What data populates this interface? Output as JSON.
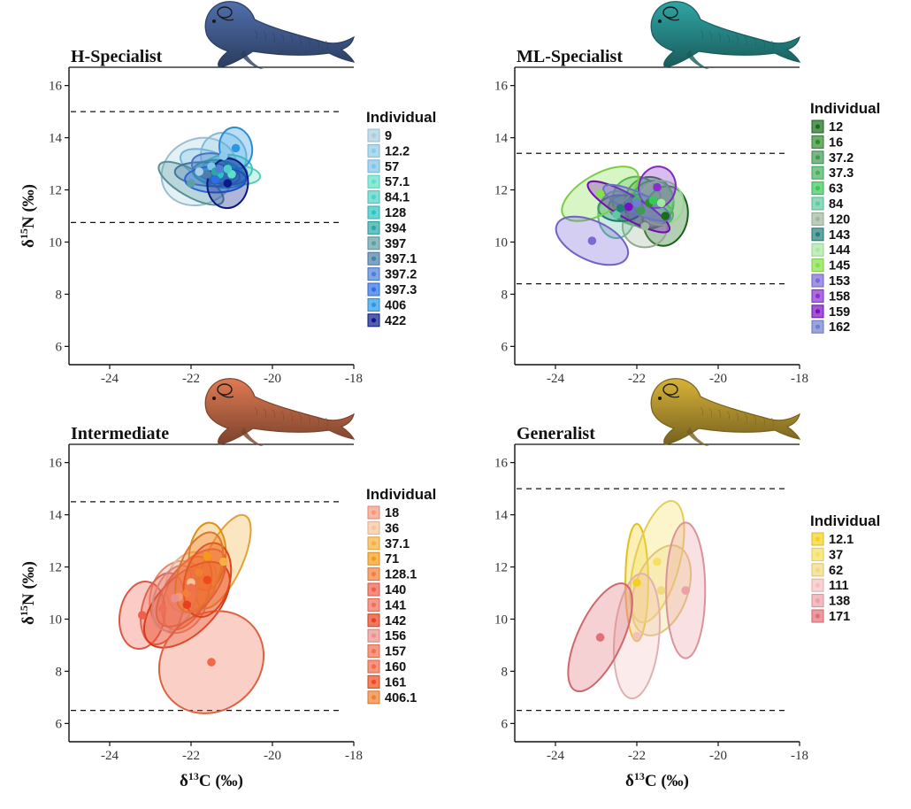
{
  "chart_data": [
    {
      "type": "scatter",
      "title": "H-Specialist",
      "ylabel": "δ15N (‰)",
      "xlabel": "",
      "xlim": [
        -25,
        -18
      ],
      "ylim": [
        5.3,
        16.7
      ],
      "x_ticks": [
        -24,
        -22,
        -20,
        -18
      ],
      "y_ticks": [
        6,
        8,
        10,
        12,
        14,
        16
      ],
      "reference_lines_y": [
        15.0,
        10.75
      ],
      "seal_color": "#4f6fad",
      "legend": {
        "title": "Individual",
        "placement": "right"
      },
      "series": [
        {
          "name": "9",
          "color": "#a8cfe0",
          "centroid": [
            -21.8,
            12.7
          ],
          "ellipse": {
            "rx": 0.95,
            "ry": 1.25,
            "angle": -25
          }
        },
        {
          "name": "12.2",
          "color": "#8ecbea",
          "centroid": [
            -21.2,
            13.3
          ],
          "ellipse": {
            "rx": 0.55,
            "ry": 0.9,
            "angle": -35
          }
        },
        {
          "name": "57",
          "color": "#7fc4ea",
          "centroid": [
            -21.5,
            12.9
          ],
          "ellipse": {
            "rx": 0.8,
            "ry": 0.55,
            "angle": 20
          }
        },
        {
          "name": "57.1",
          "color": "#5fe0c8",
          "centroid": [
            -21.0,
            12.6
          ],
          "ellipse": {
            "rx": 0.7,
            "ry": 0.4,
            "angle": 5
          }
        },
        {
          "name": "84.1",
          "color": "#4fd2c6",
          "centroid": [
            -21.1,
            12.8
          ],
          "ellipse": {
            "rx": 0.6,
            "ry": 0.55,
            "angle": 0
          }
        },
        {
          "name": "128",
          "color": "#2ec2c2",
          "centroid": [
            -21.3,
            12.6
          ],
          "ellipse": {
            "rx": 0.65,
            "ry": 0.5,
            "angle": 10
          }
        },
        {
          "name": "394",
          "color": "#2aa8a8",
          "centroid": [
            -21.4,
            12.7
          ],
          "ellipse": {
            "rx": 0.55,
            "ry": 0.45,
            "angle": 0
          }
        },
        {
          "name": "397",
          "color": "#5f9ea5",
          "centroid": [
            -22.0,
            12.25
          ],
          "ellipse": {
            "rx": 0.9,
            "ry": 0.5,
            "angle": 30
          }
        },
        {
          "name": "397.1",
          "color": "#4a7faa",
          "centroid": [
            -21.6,
            12.6
          ],
          "ellipse": {
            "rx": 0.8,
            "ry": 0.45,
            "angle": 5
          }
        },
        {
          "name": "397.2",
          "color": "#4f7fd5",
          "centroid": [
            -21.3,
            12.8
          ],
          "ellipse": {
            "rx": 0.7,
            "ry": 0.55,
            "angle": 15
          }
        },
        {
          "name": "397.3",
          "color": "#2f6fe6",
          "centroid": [
            -21.4,
            12.4
          ],
          "ellipse": {
            "rx": 0.75,
            "ry": 0.5,
            "angle": 0
          }
        },
        {
          "name": "406",
          "color": "#2b98e6",
          "centroid": [
            -20.9,
            13.6
          ],
          "ellipse": {
            "rx": 0.4,
            "ry": 0.8,
            "angle": -10
          }
        },
        {
          "name": "422",
          "color": "#0a1a8c",
          "centroid": [
            -21.1,
            12.25
          ],
          "ellipse": {
            "rx": 0.5,
            "ry": 0.95,
            "angle": 5
          }
        }
      ]
    },
    {
      "type": "scatter",
      "title": "ML-Specialist",
      "ylabel": "",
      "xlabel": "",
      "xlim": [
        -25,
        -18
      ],
      "ylim": [
        5.3,
        16.7
      ],
      "x_ticks": [
        -24,
        -22,
        -20,
        -18
      ],
      "y_ticks": [
        6,
        8,
        10,
        12,
        14,
        16
      ],
      "reference_lines_y": [
        13.4,
        8.4
      ],
      "seal_color": "#2fa5a5",
      "legend": {
        "title": "Individual",
        "placement": "right"
      },
      "series": [
        {
          "name": "12",
          "color": "#1a6b1a",
          "centroid": [
            -21.3,
            11.0
          ],
          "ellipse": {
            "rx": 0.55,
            "ry": 1.15,
            "angle": 10
          }
        },
        {
          "name": "16",
          "color": "#2e8b2e",
          "centroid": [
            -21.7,
            11.5
          ],
          "ellipse": {
            "rx": 0.6,
            "ry": 1.0,
            "angle": 15
          }
        },
        {
          "name": "37.2",
          "color": "#3f9a54",
          "centroid": [
            -21.9,
            11.2
          ],
          "ellipse": {
            "rx": 0.8,
            "ry": 0.6,
            "angle": 10
          }
        },
        {
          "name": "37.3",
          "color": "#45b060",
          "centroid": [
            -22.0,
            11.6
          ],
          "ellipse": {
            "rx": 0.6,
            "ry": 0.9,
            "angle": 20
          }
        },
        {
          "name": "63",
          "color": "#3bc65a",
          "centroid": [
            -21.6,
            11.6
          ],
          "ellipse": {
            "rx": 0.5,
            "ry": 0.75,
            "angle": 0
          }
        },
        {
          "name": "84",
          "color": "#5fc9a0",
          "centroid": [
            -22.5,
            11.05
          ],
          "ellipse": {
            "rx": 0.45,
            "ry": 0.9,
            "angle": 0
          }
        },
        {
          "name": "120",
          "color": "#9fb89f",
          "centroid": [
            -21.8,
            10.6
          ],
          "ellipse": {
            "rx": 0.55,
            "ry": 0.8,
            "angle": 0
          }
        },
        {
          "name": "143",
          "color": "#1f7f7a",
          "centroid": [
            -22.4,
            11.3
          ],
          "ellipse": {
            "rx": 0.55,
            "ry": 0.5,
            "angle": 0
          }
        },
        {
          "name": "144",
          "color": "#a6e8a0",
          "centroid": [
            -21.4,
            11.5
          ],
          "ellipse": {
            "rx": 0.55,
            "ry": 0.85,
            "angle": 15
          }
        },
        {
          "name": "145",
          "color": "#86e04a",
          "centroid": [
            -22.9,
            11.85
          ],
          "ellipse": {
            "rx": 1.05,
            "ry": 0.75,
            "angle": -30
          }
        },
        {
          "name": "153",
          "color": "#7a6ad8",
          "centroid": [
            -23.1,
            10.05
          ],
          "ellipse": {
            "rx": 0.95,
            "ry": 0.75,
            "angle": 25
          }
        },
        {
          "name": "158",
          "color": "#8a2fcf",
          "centroid": [
            -21.5,
            12.1
          ],
          "ellipse": {
            "rx": 0.45,
            "ry": 0.8,
            "angle": 15
          }
        },
        {
          "name": "159",
          "color": "#7a0fbf",
          "centroid": [
            -22.2,
            11.35
          ],
          "ellipse": {
            "rx": 1.15,
            "ry": 0.45,
            "angle": 30
          }
        },
        {
          "name": "162",
          "color": "#6f7fd0",
          "centroid": [
            -22.0,
            11.5
          ],
          "ellipse": {
            "rx": 0.9,
            "ry": 0.4,
            "angle": 25
          }
        }
      ]
    },
    {
      "type": "scatter",
      "title": "Intermediate",
      "ylabel": "δ15N (‰)",
      "xlabel": "δ13C (‰)",
      "xlim": [
        -25,
        -18
      ],
      "ylim": [
        5.3,
        16.7
      ],
      "x_ticks": [
        -24,
        -22,
        -20,
        -18
      ],
      "y_ticks": [
        6,
        8,
        10,
        12,
        14,
        16
      ],
      "reference_lines_y": [
        14.5,
        6.5
      ],
      "seal_color": "#e07a52",
      "legend": {
        "title": "Individual",
        "placement": "right"
      },
      "series": [
        {
          "name": "18",
          "color": "#f5987a",
          "centroid": [
            -22.3,
            10.85
          ],
          "ellipse": {
            "rx": 0.7,
            "ry": 1.4,
            "angle": 15
          }
        },
        {
          "name": "36",
          "color": "#f7c49a",
          "centroid": [
            -22.0,
            11.4
          ],
          "ellipse": {
            "rx": 0.6,
            "ry": 1.2,
            "angle": 20
          }
        },
        {
          "name": "37.1",
          "color": "#f5b040",
          "centroid": [
            -21.2,
            12.2
          ],
          "ellipse": {
            "rx": 0.45,
            "ry": 1.95,
            "angle": 25
          }
        },
        {
          "name": "71",
          "color": "#f49a1a",
          "centroid": [
            -21.6,
            12.4
          ],
          "ellipse": {
            "rx": 0.45,
            "ry": 1.3,
            "angle": 5
          }
        },
        {
          "name": "128.1",
          "color": "#f57f3a",
          "centroid": [
            -22.1,
            11.0
          ],
          "ellipse": {
            "rx": 0.5,
            "ry": 1.5,
            "angle": 25
          }
        },
        {
          "name": "140",
          "color": "#ef5f4a",
          "centroid": [
            -23.2,
            10.15
          ],
          "ellipse": {
            "rx": 0.55,
            "ry": 1.3,
            "angle": 10
          }
        },
        {
          "name": "141",
          "color": "#f06f5a",
          "centroid": [
            -22.7,
            10.4
          ],
          "ellipse": {
            "rx": 0.5,
            "ry": 1.4,
            "angle": 15
          }
        },
        {
          "name": "142",
          "color": "#e8401f",
          "centroid": [
            -22.1,
            10.55
          ],
          "ellipse": {
            "rx": 0.7,
            "ry": 2.05,
            "angle": 45
          }
        },
        {
          "name": "156",
          "color": "#e8908a",
          "centroid": [
            -22.4,
            10.8
          ],
          "ellipse": {
            "rx": 0.5,
            "ry": 1.3,
            "angle": 20
          }
        },
        {
          "name": "157",
          "color": "#f07050",
          "centroid": [
            -22.0,
            11.2
          ],
          "ellipse": {
            "rx": 0.55,
            "ry": 1.8,
            "angle": 40
          }
        },
        {
          "name": "160",
          "color": "#f06a4a",
          "centroid": [
            -21.5,
            8.35
          ],
          "ellipse": {
            "rx": 1.35,
            "ry": 1.85,
            "angle": -40
          }
        },
        {
          "name": "161",
          "color": "#f04a1a",
          "centroid": [
            -21.6,
            11.5
          ],
          "ellipse": {
            "rx": 0.55,
            "ry": 1.45,
            "angle": 15
          }
        },
        {
          "name": "406.1",
          "color": "#f08030",
          "centroid": [
            -21.8,
            11.8
          ],
          "ellipse": {
            "rx": 0.5,
            "ry": 1.6,
            "angle": 20
          }
        }
      ]
    },
    {
      "type": "scatter",
      "title": "Generalist",
      "ylabel": "",
      "xlabel": "δ13C (‰)",
      "xlim": [
        -25,
        -18
      ],
      "ylim": [
        5.3,
        16.7
      ],
      "x_ticks": [
        -24,
        -22,
        -20,
        -18
      ],
      "y_ticks": [
        6,
        8,
        10,
        12,
        14,
        16
      ],
      "reference_lines_y": [
        15.0,
        6.5
      ],
      "seal_color": "#d8b238",
      "legend": {
        "title": "Individual",
        "placement": "right"
      },
      "series": [
        {
          "name": "12.1",
          "color": "#f5d020",
          "centroid": [
            -22.0,
            11.4
          ],
          "ellipse": {
            "rx": 0.28,
            "ry": 2.25,
            "angle": 0
          }
        },
        {
          "name": "37",
          "color": "#f5e060",
          "centroid": [
            -21.5,
            12.2
          ],
          "ellipse": {
            "rx": 0.55,
            "ry": 2.4,
            "angle": 15
          }
        },
        {
          "name": "62",
          "color": "#f0d880",
          "centroid": [
            -21.4,
            11.1
          ],
          "ellipse": {
            "rx": 0.65,
            "ry": 1.8,
            "angle": 20
          }
        },
        {
          "name": "111",
          "color": "#f3c0c0",
          "centroid": [
            -22.0,
            9.35
          ],
          "ellipse": {
            "rx": 0.55,
            "ry": 2.4,
            "angle": 5
          }
        },
        {
          "name": "138",
          "color": "#eca0a8",
          "centroid": [
            -20.8,
            11.1
          ],
          "ellipse": {
            "rx": 0.48,
            "ry": 2.6,
            "angle": 0
          }
        },
        {
          "name": "171",
          "color": "#e07078",
          "centroid": [
            -22.9,
            9.3
          ],
          "ellipse": {
            "rx": 0.55,
            "ry": 2.25,
            "angle": 25
          }
        }
      ]
    }
  ]
}
